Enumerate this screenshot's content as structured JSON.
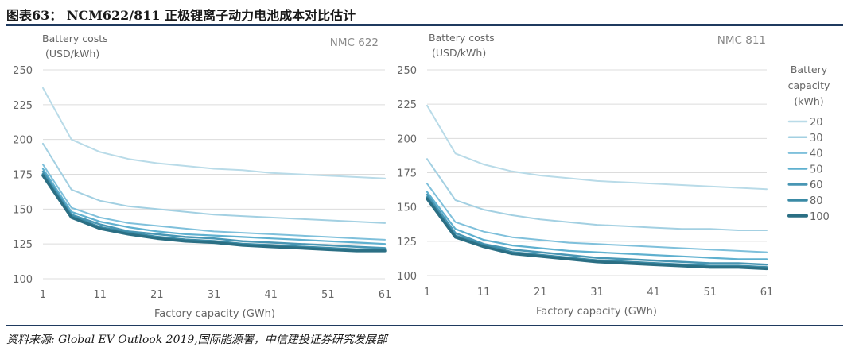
{
  "figure_title": "图表63： NCM622/811 正极锂离子动力电池成本对比估计",
  "source": "资料来源: Global EV Outlook 2019,国际能源署，中信建投证券研究发展部",
  "colors": {
    "rule": "#1f3a5f",
    "axis_text": "#666666",
    "series": [
      "#b9dbe8",
      "#a3d0e2",
      "#7fc0db",
      "#5fb0cf",
      "#4896b4",
      "#3a8aa5",
      "#2b6f84"
    ]
  },
  "chart_data": [
    {
      "type": "line",
      "title": "NMC 622",
      "ylabel": "Battery costs (USD/kWh)",
      "xlabel": "Factory  capacity (GWh)",
      "xlim": [
        1,
        61
      ],
      "ylim": [
        100,
        250
      ],
      "xticks": [
        1,
        11,
        21,
        31,
        41,
        51,
        61
      ],
      "yticks": [
        100,
        125,
        150,
        175,
        200,
        225,
        250
      ],
      "grid": "horizontal",
      "x": [
        1,
        6,
        11,
        16,
        21,
        26,
        31,
        36,
        41,
        46,
        51,
        56,
        61
      ],
      "series": [
        {
          "name": "20",
          "values": [
            237,
            200,
            191,
            186,
            183,
            181,
            179,
            178,
            176,
            175,
            174,
            173,
            172
          ]
        },
        {
          "name": "30",
          "values": [
            197,
            164,
            156,
            152,
            150,
            148,
            146,
            145,
            144,
            143,
            142,
            141,
            140
          ]
        },
        {
          "name": "40",
          "values": [
            182,
            151,
            144,
            140,
            138,
            136,
            134,
            133,
            132,
            131,
            130,
            129,
            128
          ]
        },
        {
          "name": "50",
          "values": [
            179,
            148,
            141,
            137,
            134,
            132,
            131,
            130,
            129,
            128,
            127,
            126,
            125
          ]
        },
        {
          "name": "60",
          "values": [
            177,
            146,
            139,
            134,
            132,
            130,
            129,
            127,
            126,
            125,
            124,
            123,
            122
          ]
        },
        {
          "name": "80",
          "values": [
            175,
            145,
            137,
            133,
            130,
            128,
            127,
            125,
            124,
            123,
            122,
            121,
            121
          ]
        },
        {
          "name": "100",
          "values": [
            174,
            144,
            136,
            132,
            129,
            127,
            126,
            124,
            123,
            122,
            121,
            120,
            120
          ]
        }
      ]
    },
    {
      "type": "line",
      "title": "NMC 811",
      "ylabel": "Battery costs (USD/kWh)",
      "xlabel": "Factory  capacity (GWh)",
      "legend_title": "Battery capacity (kWh)",
      "legend_position": "right",
      "xlim": [
        1,
        61
      ],
      "ylim": [
        100,
        250
      ],
      "xticks": [
        1,
        11,
        21,
        31,
        41,
        51,
        61
      ],
      "yticks": [
        100,
        125,
        150,
        175,
        200,
        225,
        250
      ],
      "grid": "horizontal",
      "x": [
        1,
        6,
        11,
        16,
        21,
        26,
        31,
        36,
        41,
        46,
        51,
        56,
        61
      ],
      "series": [
        {
          "name": "20",
          "values": [
            224,
            189,
            181,
            176,
            173,
            171,
            169,
            168,
            167,
            166,
            165,
            164,
            163
          ]
        },
        {
          "name": "30",
          "values": [
            185,
            155,
            148,
            144,
            141,
            139,
            137,
            136,
            135,
            134,
            134,
            133,
            133
          ]
        },
        {
          "name": "40",
          "values": [
            167,
            139,
            132,
            128,
            126,
            124,
            123,
            122,
            121,
            120,
            119,
            118,
            117
          ]
        },
        {
          "name": "50",
          "values": [
            161,
            134,
            126,
            122,
            120,
            118,
            117,
            116,
            115,
            114,
            113,
            112,
            112
          ]
        },
        {
          "name": "60",
          "values": [
            159,
            131,
            123,
            119,
            117,
            115,
            113,
            112,
            111,
            110,
            109,
            109,
            108
          ]
        },
        {
          "name": "80",
          "values": [
            157,
            129,
            122,
            117,
            115,
            113,
            111,
            110,
            109,
            108,
            107,
            107,
            106
          ]
        },
        {
          "name": "100",
          "values": [
            156,
            128,
            121,
            116,
            114,
            112,
            110,
            109,
            108,
            107,
            106,
            106,
            105
          ]
        }
      ]
    }
  ]
}
